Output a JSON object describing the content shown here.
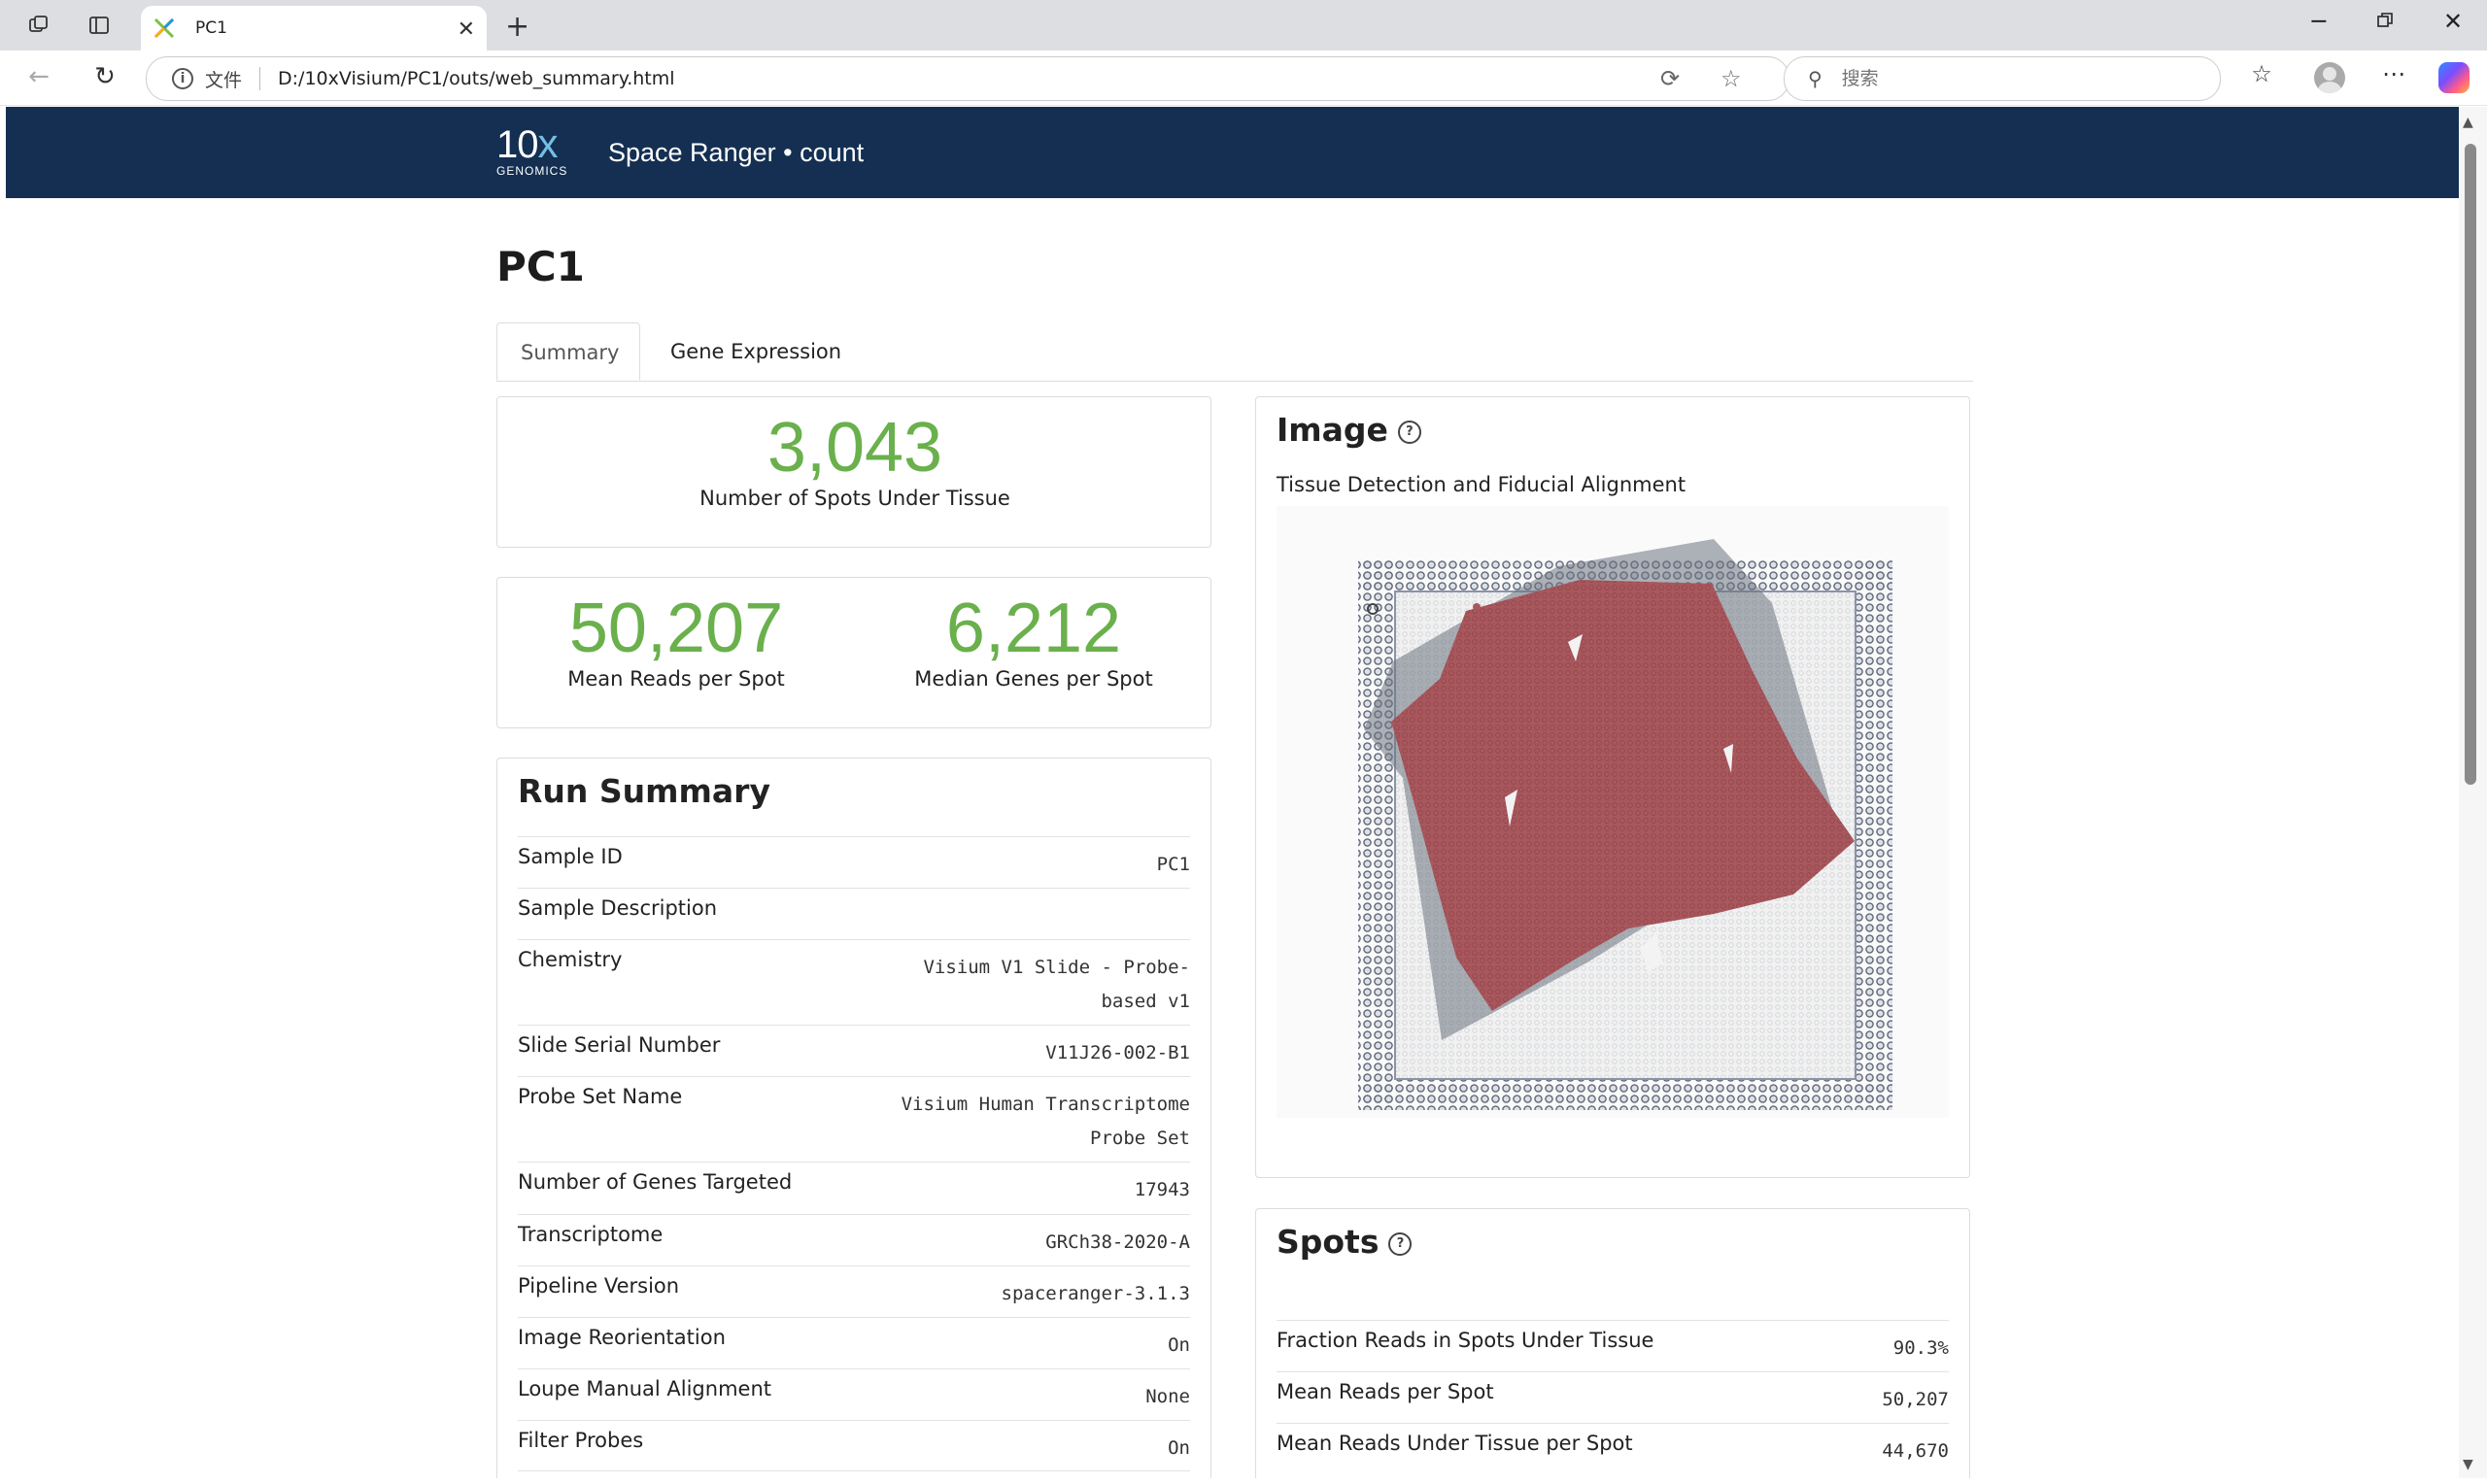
{
  "browser": {
    "tab_title": "PC1",
    "address_prefix": "文件",
    "url": "D:/10xVisium/PC1/outs/web_summary.html",
    "search_placeholder": "搜索"
  },
  "header": {
    "brand_top": "10",
    "brand_x": "x",
    "brand_bottom": "GENOMICS",
    "app_name": "Space Ranger • count"
  },
  "page": {
    "title": "PC1",
    "tabs": [
      "Summary",
      "Gene Expression"
    ]
  },
  "metrics": {
    "spots_under_tissue": {
      "value": "3,043",
      "label": "Number of Spots Under Tissue"
    },
    "mean_reads": {
      "value": "50,207",
      "label": "Mean Reads per Spot"
    },
    "median_genes": {
      "value": "6,212",
      "label": "Median Genes per Spot"
    }
  },
  "run_summary": {
    "title": "Run Summary",
    "rows": [
      {
        "key": "Sample ID",
        "value": "PC1"
      },
      {
        "key": "Sample Description",
        "value": ""
      },
      {
        "key": "Chemistry",
        "value": "Visium V1 Slide - Probe-based v1"
      },
      {
        "key": "Slide Serial Number",
        "value": "V11J26-002-B1"
      },
      {
        "key": "Probe Set Name",
        "value": "Visium Human Transcriptome Probe Set"
      },
      {
        "key": "Number of Genes Targeted",
        "value": "17943"
      },
      {
        "key": "Transcriptome",
        "value": "GRCh38-2020-A"
      },
      {
        "key": "Pipeline Version",
        "value": "spaceranger-3.1.3"
      },
      {
        "key": "Image Reorientation",
        "value": "On"
      },
      {
        "key": "Loupe Manual Alignment",
        "value": "None"
      },
      {
        "key": "Filter Probes",
        "value": "On"
      }
    ]
  },
  "image_card": {
    "title": "Image",
    "help": "?",
    "subtitle": "Tissue Detection and Fiducial Alignment"
  },
  "spots_card": {
    "title": "Spots",
    "help": "?",
    "rows": [
      {
        "key": "Fraction Reads in Spots Under Tissue",
        "value": "90.3%"
      },
      {
        "key": "Mean Reads per Spot",
        "value": "50,207"
      },
      {
        "key": "Mean Reads Under Tissue per Spot",
        "value": "44,670"
      }
    ]
  }
}
